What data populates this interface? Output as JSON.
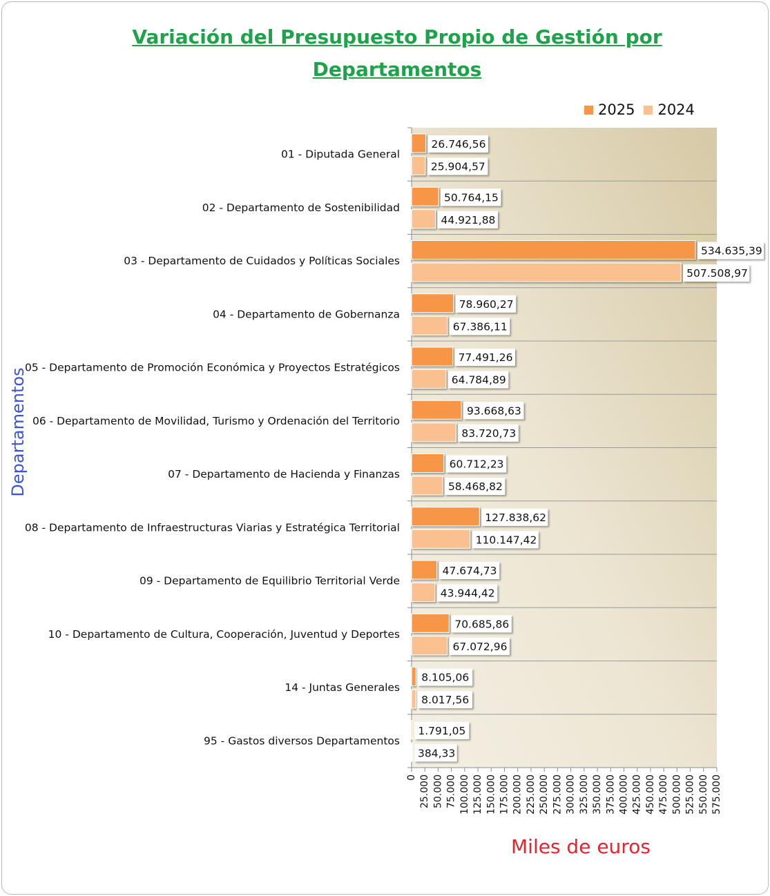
{
  "chart_data": {
    "type": "bar",
    "orientation": "horizontal",
    "title": "Variación del Presupuesto Propio de Gestión por Departamentos",
    "title_lines": [
      "Variación del Presupuesto Propio de Gestión por",
      "Departamentos"
    ],
    "xlabel": "Miles de euros",
    "ylabel": "Departamentos",
    "xlim": [
      0,
      575000
    ],
    "xticks": [
      0,
      25000,
      50000,
      75000,
      100000,
      125000,
      150000,
      175000,
      200000,
      225000,
      250000,
      275000,
      300000,
      325000,
      350000,
      375000,
      400000,
      425000,
      450000,
      475000,
      500000,
      525000,
      550000,
      575000
    ],
    "xtick_labels": [
      "0",
      "25.000",
      "50.000",
      "75.000",
      "100.000",
      "125.000",
      "150.000",
      "175.000",
      "200.000",
      "225.000",
      "250.000",
      "275.000",
      "300.000",
      "325.000",
      "350.000",
      "375.000",
      "400.000",
      "425.000",
      "450.000",
      "475.000",
      "500.000",
      "525.000",
      "550.000",
      "575.000"
    ],
    "legend_position": "top-right",
    "categories": [
      "01 - Diputada General",
      "02 - Departamento de Sostenibilidad",
      "03 - Departamento de Cuidados y Políticas Sociales",
      "04 - Departamento de Gobernanza",
      "05 - Departamento de Promoción Económica y Proyectos Estratégicos",
      "06 - Departamento de Movilidad, Turismo y Ordenación del Territorio",
      "07 - Departamento de Hacienda y Finanzas",
      "08 - Departamento de Infraestructuras Viarias y Estratégica Territorial",
      "09 - Departamento de Equilibrio Territorial Verde",
      "10 - Departamento de Cultura, Cooperación, Juventud y Deportes",
      "14 - Juntas Generales",
      "95 - Gastos diversos Departamentos"
    ],
    "series": [
      {
        "name": "2025",
        "color": "#f79646",
        "values": [
          26746.56,
          50764.15,
          534635.39,
          78960.27,
          77491.26,
          93668.63,
          60712.23,
          127838.62,
          47674.73,
          70685.86,
          8105.06,
          1791.05
        ],
        "labels": [
          "26.746,56",
          "50.764,15",
          "534.635,39",
          "78.960,27",
          "77.491,26",
          "93.668,63",
          "60.712,23",
          "127.838,62",
          "47.674,73",
          "70.685,86",
          "8.105,06",
          "1.791,05"
        ]
      },
      {
        "name": "2024",
        "color": "#fac090",
        "values": [
          25904.57,
          44921.88,
          507508.97,
          67386.11,
          64784.89,
          83720.73,
          58468.82,
          110147.42,
          43944.42,
          67072.96,
          8017.56,
          384.33
        ],
        "labels": [
          "25.904,57",
          "44.921,88",
          "507.508,97",
          "67.386,11",
          "64.784,89",
          "83.720,73",
          "58.468,82",
          "110.147,42",
          "43.944,42",
          "67.072,96",
          "8.017,56",
          "384,33"
        ]
      }
    ]
  }
}
